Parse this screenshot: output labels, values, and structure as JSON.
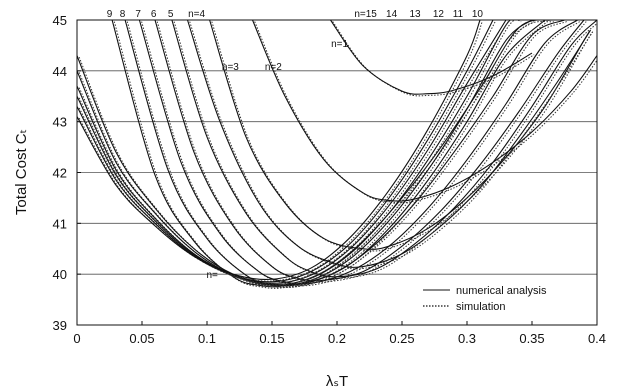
{
  "chart_data": {
    "type": "line",
    "title": "",
    "xlabel": "λₛT",
    "ylabel": "Total Cost Cₜ",
    "xlim": [
      0,
      0.4
    ],
    "ylim": [
      39,
      45
    ],
    "x_ticks": [
      "0",
      "0.05",
      "0.1",
      "0.15",
      "0.2",
      "0.25",
      "0.3",
      "0.35",
      "0.4"
    ],
    "y_ticks": [
      "39",
      "40",
      "41",
      "42",
      "43",
      "44",
      "45"
    ],
    "grid": "horizontal",
    "legend_position": "bottom-right",
    "legend": [
      {
        "label": "numerical analysis",
        "style": "solid"
      },
      {
        "label": "simulation",
        "style": "dotted"
      }
    ],
    "series": [
      {
        "label": "n=1",
        "x": [
          0.195,
          0.22,
          0.25,
          0.27,
          0.29,
          0.32,
          0.35
        ],
        "y": [
          45.0,
          44.1,
          43.6,
          43.55,
          43.62,
          43.9,
          44.35
        ]
      },
      {
        "label": "n=2",
        "x": [
          0.135,
          0.16,
          0.19,
          0.22,
          0.24,
          0.26,
          0.29,
          0.32,
          0.35,
          0.38,
          0.4
        ],
        "y": [
          45.0,
          43.5,
          42.25,
          41.6,
          41.45,
          41.48,
          41.75,
          42.2,
          42.8,
          43.6,
          44.3
        ]
      },
      {
        "label": "n=3",
        "x": [
          0.102,
          0.13,
          0.16,
          0.19,
          0.22,
          0.24,
          0.27,
          0.3,
          0.33,
          0.36,
          0.39,
          0.395
        ],
        "y": [
          45.0,
          42.7,
          41.4,
          40.7,
          40.5,
          40.55,
          40.9,
          41.5,
          42.3,
          43.3,
          44.6,
          44.8
        ]
      },
      {
        "label": "n=4",
        "x": [
          0.085,
          0.11,
          0.14,
          0.17,
          0.2,
          0.22,
          0.25,
          0.28,
          0.31,
          0.34,
          0.37,
          0.395
        ],
        "y": [
          45.0,
          43.0,
          41.4,
          40.55,
          40.2,
          40.15,
          40.4,
          40.95,
          41.7,
          42.7,
          43.8,
          44.8
        ]
      },
      {
        "label": "5",
        "x": [
          0.073,
          0.1,
          0.13,
          0.16,
          0.18,
          0.2,
          0.23,
          0.26,
          0.29,
          0.32,
          0.35,
          0.38,
          0.4
        ],
        "y": [
          45.0,
          42.7,
          41.2,
          40.35,
          40.05,
          39.95,
          40.1,
          40.6,
          41.3,
          42.2,
          43.3,
          44.5,
          45.0
        ]
      },
      {
        "label": "6",
        "x": [
          0.06,
          0.09,
          0.12,
          0.15,
          0.17,
          0.19,
          0.22,
          0.25,
          0.28,
          0.31,
          0.34,
          0.37,
          0.39
        ],
        "y": [
          45.0,
          42.4,
          40.95,
          40.15,
          39.92,
          39.88,
          40.05,
          40.55,
          41.25,
          42.15,
          43.2,
          44.35,
          45.0
        ]
      },
      {
        "label": "7",
        "x": [
          0.048,
          0.08,
          0.11,
          0.14,
          0.16,
          0.18,
          0.21,
          0.24,
          0.27,
          0.3,
          0.33,
          0.36,
          0.385
        ],
        "y": [
          45.0,
          42.2,
          40.8,
          40.05,
          39.85,
          39.82,
          40.05,
          40.55,
          41.3,
          42.25,
          43.35,
          44.55,
          45.0
        ]
      },
      {
        "label": "8",
        "x": [
          0.037,
          0.07,
          0.1,
          0.13,
          0.15,
          0.17,
          0.2,
          0.23,
          0.26,
          0.29,
          0.32,
          0.35,
          0.375
        ],
        "y": [
          45.0,
          42.05,
          40.7,
          39.98,
          39.8,
          39.8,
          40.05,
          40.6,
          41.4,
          42.4,
          43.5,
          44.7,
          45.0
        ]
      },
      {
        "label": "9",
        "x": [
          0.027,
          0.06,
          0.09,
          0.12,
          0.14,
          0.16,
          0.19,
          0.22,
          0.25,
          0.28,
          0.31,
          0.34,
          0.365
        ],
        "y": [
          45.0,
          41.95,
          40.65,
          39.95,
          39.78,
          39.78,
          40.05,
          40.65,
          41.5,
          42.5,
          43.65,
          44.85,
          45.0
        ]
      },
      {
        "label": "10",
        "x": [
          0.0,
          0.03,
          0.06,
          0.09,
          0.12,
          0.15,
          0.18,
          0.21,
          0.24,
          0.27,
          0.3,
          0.33,
          0.36
        ],
        "y": [
          44.3,
          42.4,
          41.3,
          40.5,
          40.0,
          39.78,
          39.85,
          40.2,
          40.9,
          41.85,
          43.0,
          44.3,
          45.0
        ]
      },
      {
        "label": "11",
        "x": [
          0.0,
          0.03,
          0.06,
          0.09,
          0.12,
          0.15,
          0.18,
          0.21,
          0.24,
          0.27,
          0.3,
          0.33,
          0.35
        ],
        "y": [
          44.0,
          42.2,
          41.2,
          40.45,
          39.98,
          39.78,
          39.88,
          40.3,
          41.05,
          42.05,
          43.25,
          44.6,
          45.0
        ]
      },
      {
        "label": "12",
        "x": [
          0.0,
          0.03,
          0.06,
          0.09,
          0.12,
          0.15,
          0.18,
          0.21,
          0.24,
          0.27,
          0.3,
          0.33,
          0.34
        ],
        "y": [
          43.7,
          42.05,
          41.1,
          40.4,
          39.98,
          39.8,
          39.92,
          40.4,
          41.2,
          42.25,
          43.5,
          44.9,
          45.0
        ]
      },
      {
        "label": "13",
        "x": [
          0.0,
          0.03,
          0.06,
          0.09,
          0.12,
          0.15,
          0.18,
          0.21,
          0.24,
          0.27,
          0.3,
          0.33
        ],
        "y": [
          43.5,
          41.95,
          41.05,
          40.38,
          39.98,
          39.82,
          39.98,
          40.5,
          41.35,
          42.45,
          43.75,
          45.0
        ]
      },
      {
        "label": "14",
        "x": [
          0.0,
          0.03,
          0.06,
          0.09,
          0.12,
          0.15,
          0.18,
          0.21,
          0.24,
          0.27,
          0.3,
          0.32
        ],
        "y": [
          43.3,
          41.85,
          41.0,
          40.36,
          39.98,
          39.85,
          40.05,
          40.6,
          41.5,
          42.65,
          44.0,
          45.0
        ]
      },
      {
        "label": "n=15",
        "x": [
          0.0,
          0.03,
          0.06,
          0.09,
          0.12,
          0.15,
          0.18,
          0.21,
          0.24,
          0.27,
          0.3,
          0.31
        ],
        "y": [
          43.1,
          41.75,
          40.95,
          40.35,
          40.0,
          39.9,
          40.12,
          40.72,
          41.65,
          42.85,
          44.3,
          45.0
        ]
      }
    ],
    "curve_labels": [
      {
        "text": "9",
        "x": 0.025,
        "y": 45.0,
        "pos": "top"
      },
      {
        "text": "8",
        "x": 0.035,
        "y": 45.0,
        "pos": "top"
      },
      {
        "text": "7",
        "x": 0.047,
        "y": 45.0,
        "pos": "top"
      },
      {
        "text": "6",
        "x": 0.059,
        "y": 45.0,
        "pos": "top"
      },
      {
        "text": "5",
        "x": 0.072,
        "y": 45.0,
        "pos": "top"
      },
      {
        "text": "n=4",
        "x": 0.092,
        "y": 45.0,
        "pos": "top"
      },
      {
        "text": "n=15",
        "x": 0.222,
        "y": 45.0,
        "pos": "top"
      },
      {
        "text": "14",
        "x": 0.242,
        "y": 45.0,
        "pos": "top"
      },
      {
        "text": "13",
        "x": 0.26,
        "y": 45.0,
        "pos": "top"
      },
      {
        "text": "12",
        "x": 0.278,
        "y": 45.0,
        "pos": "top"
      },
      {
        "text": "11",
        "x": 0.293,
        "y": 45.0,
        "pos": "top"
      },
      {
        "text": "10",
        "x": 0.308,
        "y": 45.0,
        "pos": "top"
      },
      {
        "text": "n=3",
        "x": 0.118,
        "y": 44.1,
        "pos": "inside"
      },
      {
        "text": "n=2",
        "x": 0.151,
        "y": 44.1,
        "pos": "inside"
      },
      {
        "text": "n=1",
        "x": 0.202,
        "y": 44.55,
        "pos": "inside"
      },
      {
        "text": "n=",
        "x": 0.104,
        "y": 40.0,
        "pos": "inside"
      }
    ]
  }
}
